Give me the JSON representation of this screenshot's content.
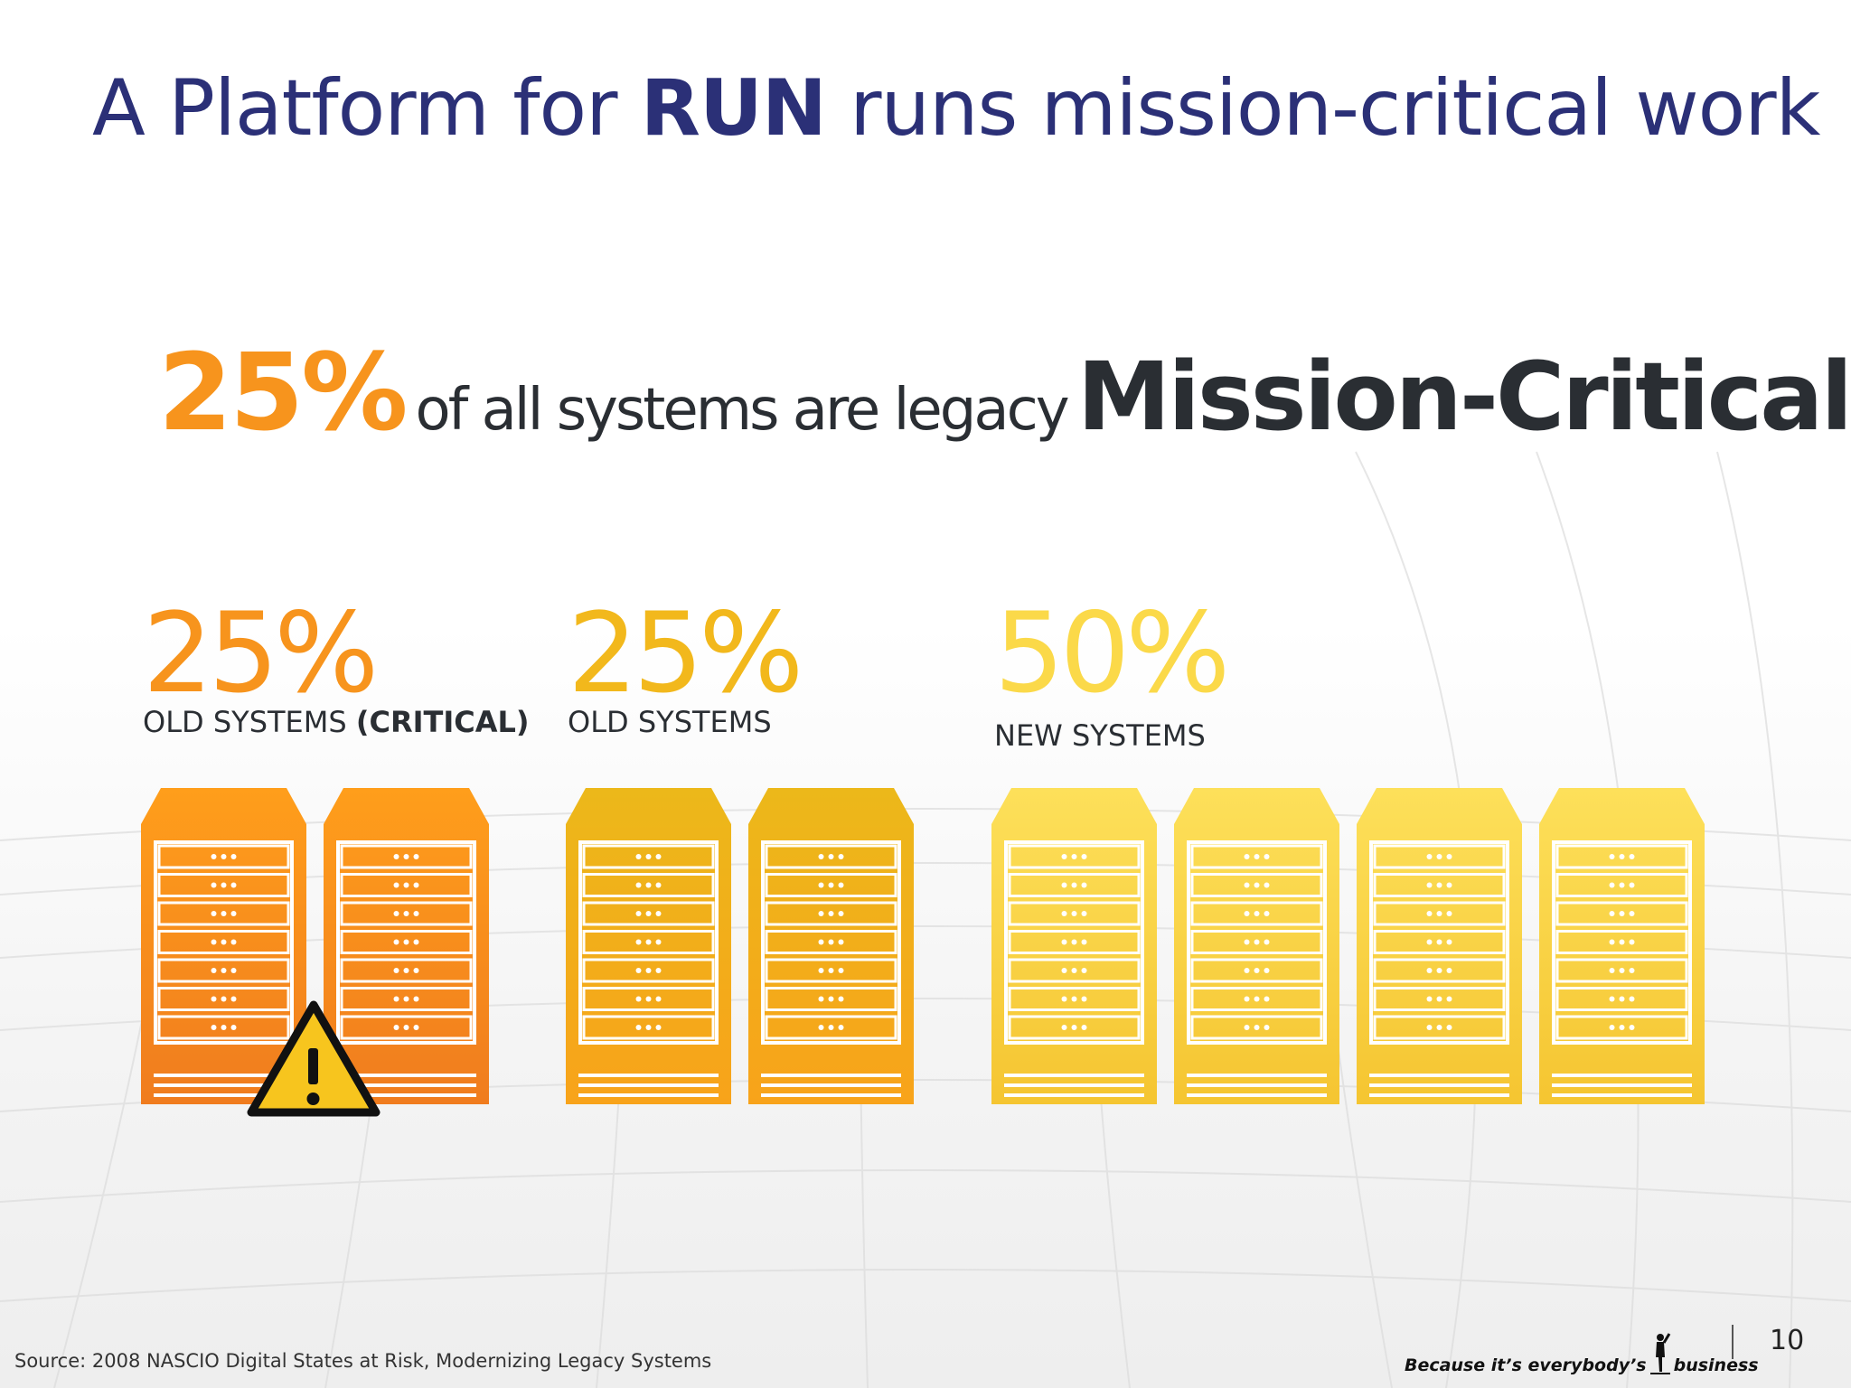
{
  "slide": {
    "title_prefix": "A Platform for ",
    "title_bold": "RUN",
    "title_suffix": " runs mission-critical work",
    "headline": {
      "percent": "25%",
      "middle": "of all systems are legacy",
      "emphasis": "Mission-Critical"
    },
    "groups": [
      {
        "percent": "25%",
        "label": "OLD SYSTEMS ",
        "label_bold": "(CRITICAL)",
        "color": "#f7941d",
        "servers": 2,
        "warning": true
      },
      {
        "percent": "25%",
        "label": "OLD SYSTEMS",
        "label_bold": "",
        "color": "#f2b81c",
        "servers": 2,
        "warning": false
      },
      {
        "percent": "50%",
        "label": "NEW SYSTEMS",
        "label_bold": "",
        "color": "#fbd949",
        "servers": 4,
        "warning": false
      }
    ],
    "icons": {
      "server": "server-rack-icon",
      "warning": "warning-triangle-icon",
      "brand_figure": "person-icon"
    },
    "footer": {
      "source": "Source: 2008 NASCIO Digital States at Risk, Modernizing Legacy Systems",
      "brand_before": "Because it’s everybody’s",
      "brand_after": "business",
      "page_number": "10"
    }
  }
}
